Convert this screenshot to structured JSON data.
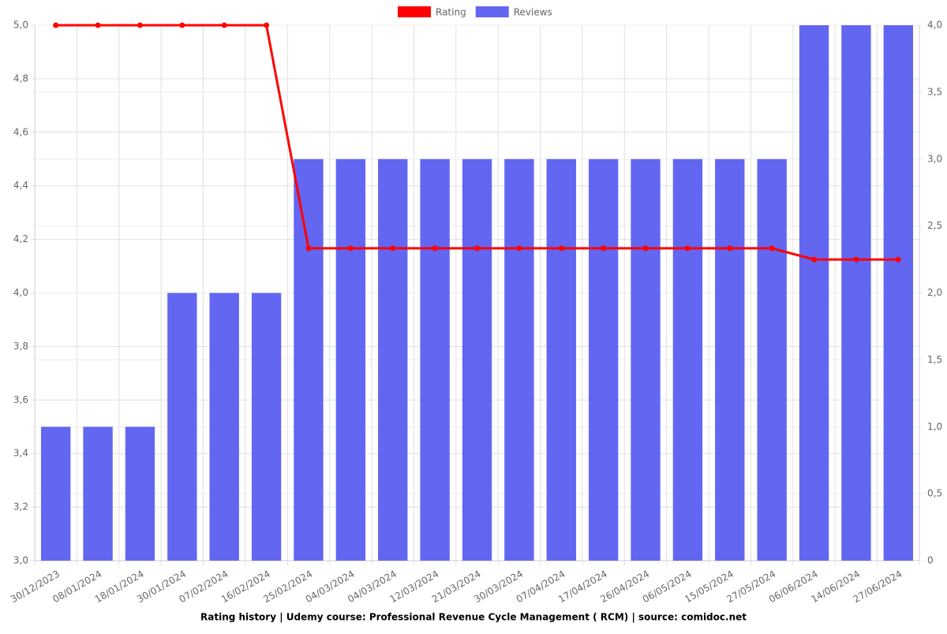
{
  "chart_data": {
    "type": "bar-line",
    "title": "Rating history | Udemy course: Professional Revenue Cycle Management ( RCM) | source: comidoc.net",
    "categories": [
      "30/12/2023",
      "08/01/2024",
      "18/01/2024",
      "30/01/2024",
      "07/02/2024",
      "16/02/2024",
      "25/02/2024",
      "04/03/2024",
      "04/03/2024",
      "12/03/2024",
      "21/03/2024",
      "30/03/2024",
      "07/04/2024",
      "17/04/2024",
      "26/04/2024",
      "06/05/2024",
      "15/05/2024",
      "27/05/2024",
      "06/06/2024",
      "14/06/2024",
      "27/06/2024"
    ],
    "series": [
      {
        "name": "Rating",
        "type": "line",
        "color": "#ff0000",
        "axis": "y",
        "values": [
          5,
          5,
          5,
          5,
          5,
          5,
          4.1667,
          4.1667,
          4.1667,
          4.1667,
          4.1667,
          4.1667,
          4.1667,
          4.1667,
          4.1667,
          4.1667,
          4.1667,
          4.1667,
          4.125,
          4.125,
          4.125
        ]
      },
      {
        "name": "Reviews",
        "type": "bar",
        "color": "#6366f1",
        "axis": "y2",
        "values": [
          1,
          1,
          1,
          2,
          2,
          2,
          3,
          3,
          3,
          3,
          3,
          3,
          3,
          3,
          3,
          3,
          3,
          3,
          4,
          4,
          4
        ]
      }
    ],
    "ylim": [
      3,
      5
    ],
    "yticks": [
      {
        "value": 3,
        "label": "3,0"
      },
      {
        "value": 3.2,
        "label": "3,2"
      },
      {
        "value": 3.4,
        "label": "3,4"
      },
      {
        "value": 3.6,
        "label": "3,6"
      },
      {
        "value": 3.8,
        "label": "3,8"
      },
      {
        "value": 4,
        "label": "4,0"
      },
      {
        "value": 4.2,
        "label": "4,2"
      },
      {
        "value": 4.4,
        "label": "4,4"
      },
      {
        "value": 4.6,
        "label": "4,6"
      },
      {
        "value": 4.8,
        "label": "4,8"
      },
      {
        "value": 5,
        "label": "5,0"
      }
    ],
    "y2lim": [
      0,
      4
    ],
    "y2ticks": [
      0,
      {
        "value": 0.5,
        "label": "0,5"
      },
      {
        "value": 1,
        "label": "1,0"
      },
      {
        "value": 1.5,
        "label": "1,5"
      },
      {
        "value": 2,
        "label": "2,0"
      },
      {
        "value": 2.5,
        "label": "2,5"
      },
      {
        "value": 3,
        "label": "3,0"
      },
      {
        "value": 3.5,
        "label": "3,5"
      },
      {
        "value": 4,
        "label": "4,0"
      }
    ],
    "grid": true,
    "legend": "top"
  }
}
